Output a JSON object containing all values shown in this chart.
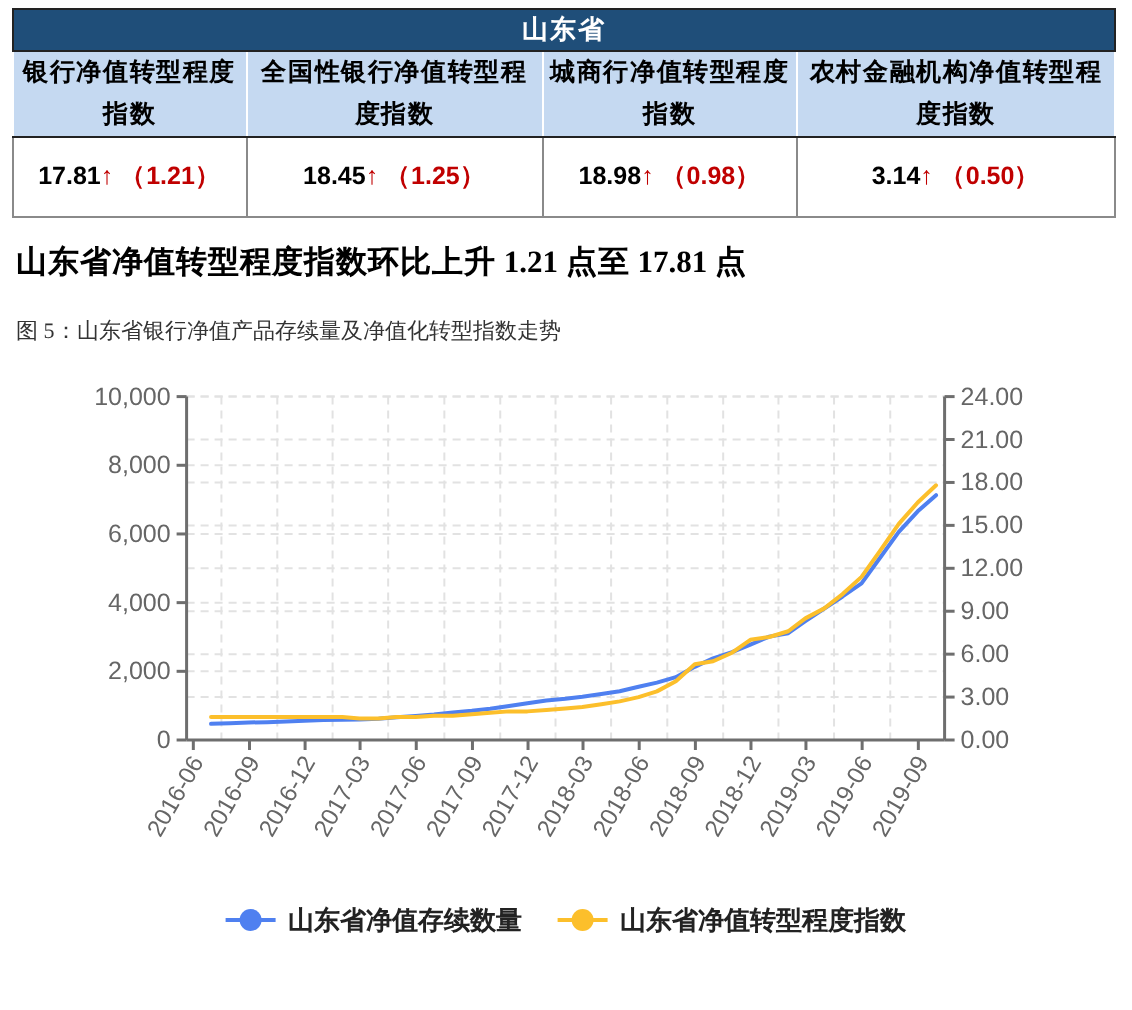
{
  "chart_data": [
    {
      "type": "other",
      "title": "山东省",
      "categories": [
        "银行净值转型程度指数",
        "全国性银行净值转型程度指数",
        "城商行净值转型程度指数",
        "农村金融机构净值转型程度指数"
      ],
      "data_labels": true,
      "series": [
        {
          "color": "#000000",
          "values": [
            17.81,
            18.45,
            18.98,
            3.14
          ]
        },
        {
          "color": "#c00000",
          "values": [
            1.21,
            1.25,
            0.98,
            0.5
          ],
          "value_labels": [
            "↑ （1.21）",
            "↑ （1.25）",
            "↑ （0.98）",
            "↑ （0.50）"
          ]
        }
      ]
    },
    {
      "type": "line",
      "title": "山东省净值转型程度指数环比上升 1.21 点至 17.81 点",
      "subtitle": "图 5：山东省银行净值产品存续量及净值化转型指数走势",
      "x": [
        "2016-06-30",
        "2016-07-31",
        "2016-08-31",
        "2016-09-30",
        "2016-10-31",
        "2016-11-30",
        "2016-12-31",
        "2017-01-31",
        "2017-02-28",
        "2017-03-31",
        "2017-04-30",
        "2017-05-31",
        "2017-06-30",
        "2017-07-31",
        "2017-08-31",
        "2017-09-30",
        "2017-10-31",
        "2017-11-30",
        "2017-12-31",
        "2018-01-31",
        "2018-02-28",
        "2018-03-31",
        "2018-04-30",
        "2018-05-31",
        "2018-06-30",
        "2018-07-31",
        "2018-08-31",
        "2018-09-30",
        "2018-10-31",
        "2018-11-30",
        "2018-12-31",
        "2019-01-31",
        "2019-02-28",
        "2019-03-31",
        "2019-04-30",
        "2019-05-31",
        "2019-06-30",
        "2019-07-31",
        "2019-08-31",
        "2019-09-30"
      ],
      "xlim": [
        "2016-05-21",
        "2019-10-14"
      ],
      "xticks": [
        "2016-06",
        "2016-09",
        "2016-12",
        "2017-03",
        "2017-06",
        "2017-09",
        "2017-12",
        "2018-03",
        "2018-06",
        "2018-09",
        "2018-12",
        "2019-03",
        "2019-06",
        "2019-09"
      ],
      "ylim": [
        0,
        10000
      ],
      "yticks": [
        0,
        {
          "value": 2000,
          "label": "2,000"
        },
        {
          "value": 4000,
          "label": "4,000"
        },
        {
          "value": 6000,
          "label": "6,000"
        },
        {
          "value": 8000,
          "label": "8,000"
        },
        {
          "value": 10000,
          "label": "10,000"
        }
      ],
      "y2lim": [
        0,
        24
      ],
      "y2ticks": [
        {
          "value": 0,
          "label": "0.00"
        },
        {
          "value": 3,
          "label": "3.00"
        },
        {
          "value": 6,
          "label": "6.00"
        },
        {
          "value": 9,
          "label": "9.00"
        },
        {
          "value": 12,
          "label": "12.00"
        },
        {
          "value": 15,
          "label": "15.00"
        },
        {
          "value": 18,
          "label": "18.00"
        },
        {
          "value": 21,
          "label": "21.00"
        },
        {
          "value": 24,
          "label": "24.00"
        }
      ],
      "grid": true,
      "legend": "bottom",
      "series": [
        {
          "name": "山东省净值存续数量",
          "color": "#4f80f0",
          "values": [
            470,
            490,
            510,
            520,
            540,
            560,
            580,
            590,
            600,
            620,
            660,
            700,
            740,
            800,
            850,
            910,
            990,
            1070,
            1150,
            1200,
            1260,
            1340,
            1420,
            1550,
            1670,
            1830,
            2130,
            2380,
            2560,
            2780,
            3010,
            3110,
            3460,
            3830,
            4180,
            4560,
            5300,
            6060,
            6660,
            7130
          ]
        },
        {
          "name": "山东省净值转型程度指数",
          "color": "#fcbf2b",
          "axis": "y2",
          "values": [
            1.6,
            1.6,
            1.6,
            1.6,
            1.6,
            1.6,
            1.6,
            1.6,
            1.5,
            1.5,
            1.6,
            1.6,
            1.7,
            1.7,
            1.8,
            1.9,
            2.0,
            2.0,
            2.1,
            2.2,
            2.3,
            2.5,
            2.7,
            3.0,
            3.4,
            4.1,
            5.3,
            5.5,
            6.1,
            7.0,
            7.2,
            7.6,
            8.5,
            9.2,
            10.2,
            11.4,
            13.2,
            15.1,
            16.6,
            17.8
          ]
        }
      ]
    }
  ]
}
